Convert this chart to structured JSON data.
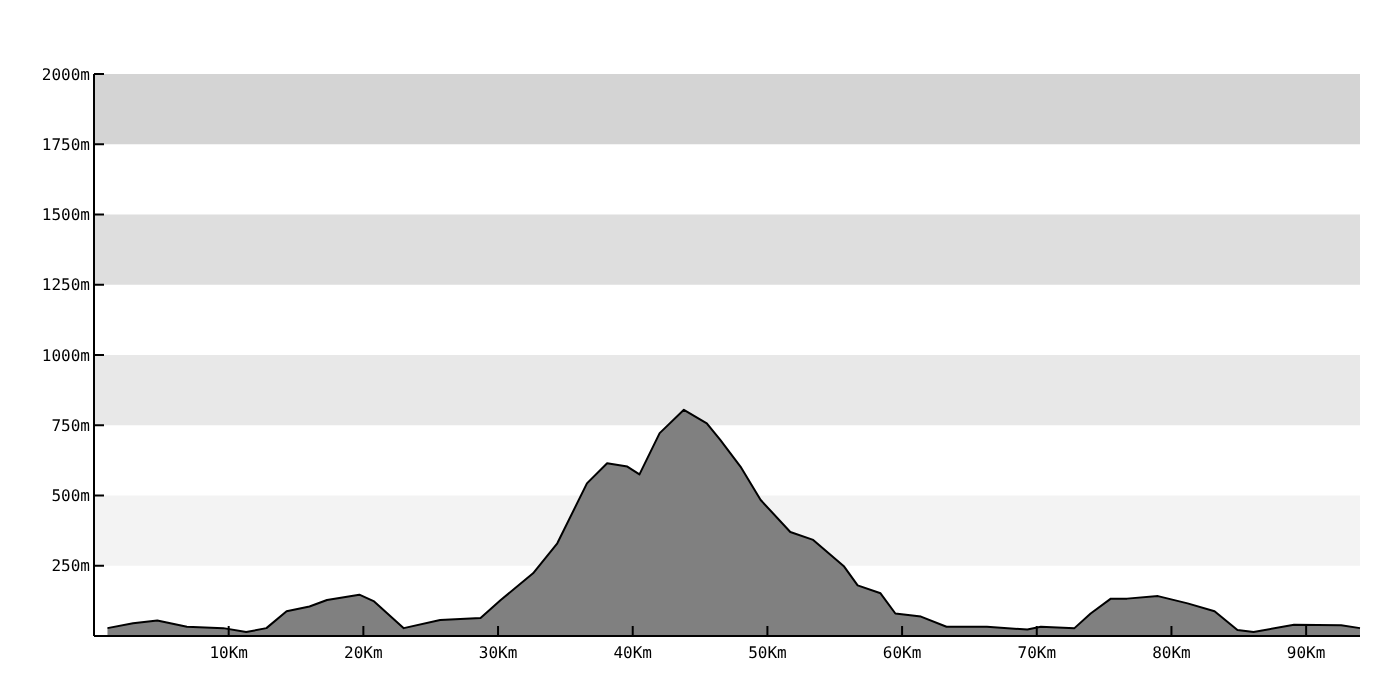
{
  "chart_data": {
    "type": "area",
    "x": [
      1.0,
      2.9,
      4.7,
      6.9,
      9.6,
      11.3,
      12.8,
      14.3,
      16.0,
      17.3,
      19.7,
      20.8,
      23.0,
      25.7,
      28.7,
      30.2,
      32.6,
      34.4,
      36.6,
      38.1,
      39.6,
      40.5,
      42.0,
      43.8,
      45.5,
      46.5,
      48.0,
      49.5,
      51.7,
      53.4,
      55.7,
      56.7,
      58.4,
      59.5,
      61.4,
      63.3,
      66.3,
      69.3,
      70.3,
      72.8,
      74.0,
      75.5,
      76.7,
      79.0,
      81.2,
      83.2,
      84.9,
      86.1,
      89.1,
      92.6,
      94.0
    ],
    "series": [
      {
        "color": "#808080",
        "values": [
          28,
          45,
          55,
          33,
          28,
          14,
          28,
          88,
          105,
          128,
          147,
          123,
          28,
          57,
          64,
          128,
          223,
          330,
          543,
          615,
          603,
          575,
          722,
          805,
          757,
          698,
          603,
          484,
          370,
          342,
          247,
          180,
          152,
          80,
          69,
          33,
          33,
          23,
          33,
          28,
          80,
          133,
          133,
          142,
          116,
          88,
          21,
          14,
          40,
          38,
          28
        ]
      }
    ],
    "xlim": [
      0,
      94
    ],
    "xticks": [
      {
        "value": 10,
        "label": "10Km"
      },
      {
        "value": 20,
        "label": "20Km"
      },
      {
        "value": 30,
        "label": "30Km"
      },
      {
        "value": 40,
        "label": "40Km"
      },
      {
        "value": 50,
        "label": "50Km"
      },
      {
        "value": 60,
        "label": "60Km"
      },
      {
        "value": 70,
        "label": "70Km"
      },
      {
        "value": 80,
        "label": "80Km"
      },
      {
        "value": 90,
        "label": "90Km"
      }
    ],
    "ylim": [
      0,
      2000
    ],
    "yticks": [
      {
        "value": 250,
        "label": "250m"
      },
      {
        "value": 500,
        "label": "500m"
      },
      {
        "value": 750,
        "label": "750m"
      },
      {
        "value": 1000,
        "label": "1000m"
      },
      {
        "value": 1250,
        "label": "1250m"
      },
      {
        "value": 1500,
        "label": "1500m"
      },
      {
        "value": 1750,
        "label": "1750m"
      },
      {
        "value": 2000,
        "label": "2000m"
      }
    ],
    "bands": [
      {
        "axis": "y",
        "from": 250,
        "to": 500,
        "color": "#f3f3f3"
      },
      {
        "axis": "y",
        "from": 750,
        "to": 1000,
        "color": "#e8e8e8"
      },
      {
        "axis": "y",
        "from": 1250,
        "to": 1500,
        "color": "#dedede"
      },
      {
        "axis": "y",
        "from": 1750,
        "to": 2000,
        "color": "#d4d4d4"
      }
    ],
    "grid": false
  }
}
